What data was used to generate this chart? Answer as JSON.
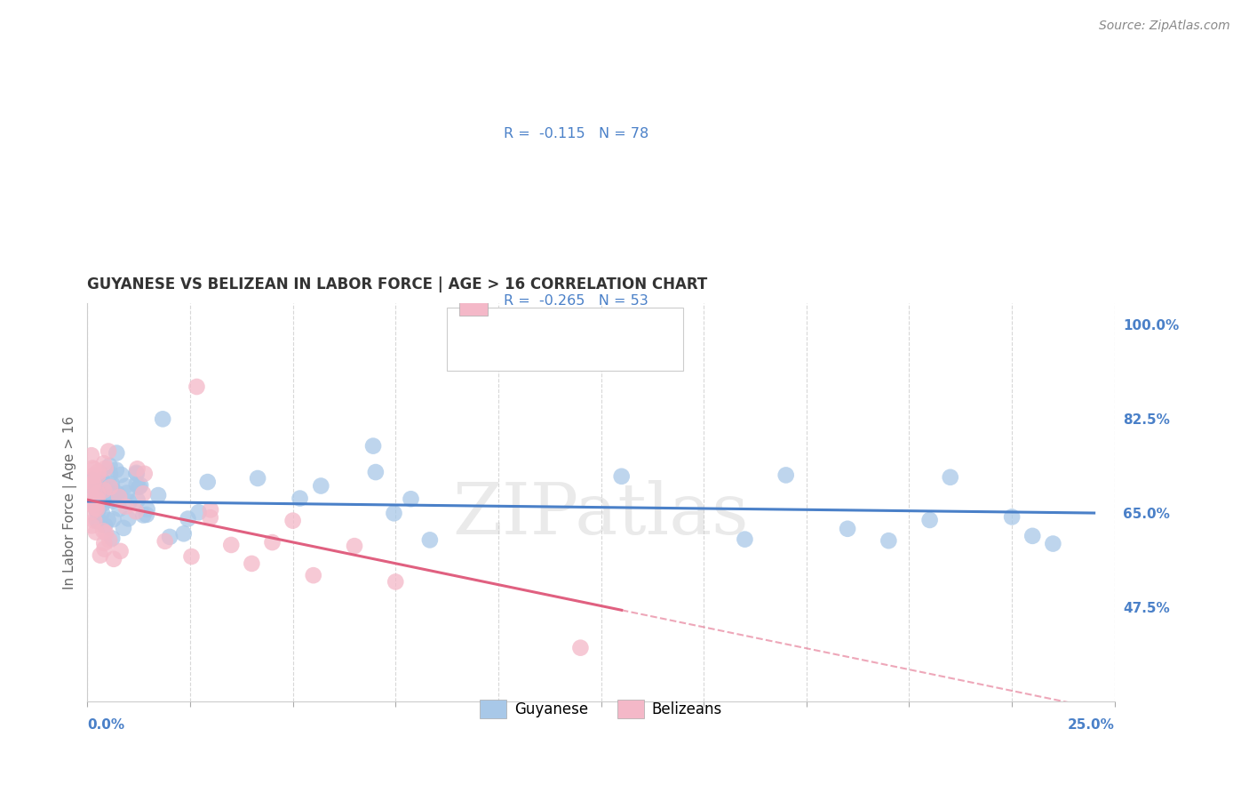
{
  "title": "GUYANESE VS BELIZEAN IN LABOR FORCE | AGE > 16 CORRELATION CHART",
  "source": "Source: ZipAtlas.com",
  "ylabel": "In Labor Force | Age > 16",
  "right_yticks": [
    1.0,
    0.825,
    0.65,
    0.475
  ],
  "right_yticklabels": [
    "100.0%",
    "82.5%",
    "65.0%",
    "47.5%"
  ],
  "xmin": 0.0,
  "xmax": 0.25,
  "ymin": 0.3,
  "ymax": 1.04,
  "r_guyanese": -0.115,
  "n_guyanese": 78,
  "r_belizean": -0.265,
  "n_belizean": 53,
  "color_guyanese": "#a8c8e8",
  "color_belizean": "#f4b8c8",
  "color_trend_guyanese": "#4a80c8",
  "color_trend_belizean": "#e06080",
  "color_blue_text": "#4a80c8",
  "background_color": "#ffffff",
  "grid_color": "#d8d8d8",
  "watermark": "ZIPatlas",
  "legend_entry1": "R =  -0.115   N = 78",
  "legend_entry2": "R =  -0.265   N = 53",
  "legend_label1": "Guyanese",
  "legend_label2": "Belizeans"
}
